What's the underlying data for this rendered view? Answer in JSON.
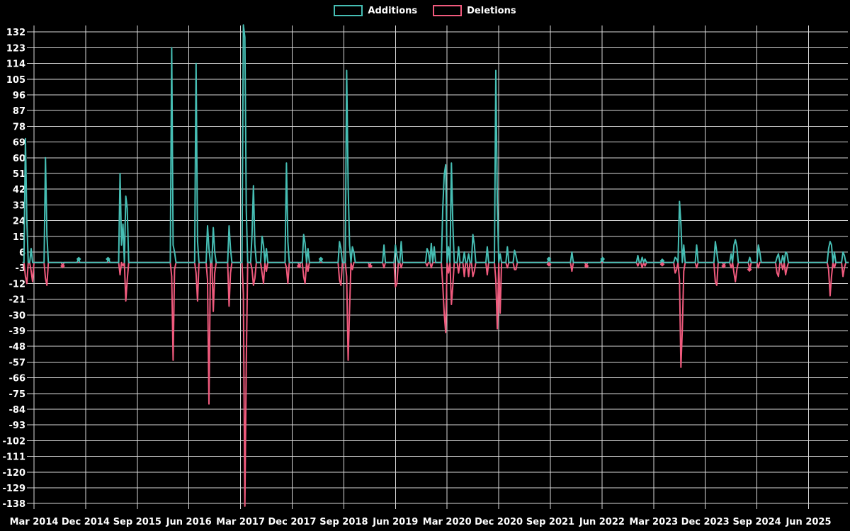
{
  "colors": {
    "background": "#000000",
    "grid": "#d9d9d9",
    "text": "#ffffff",
    "additions": "#46beb4",
    "deletions": "#f05a7d"
  },
  "legend": {
    "items": [
      {
        "label": "Additions",
        "color": "#46beb4"
      },
      {
        "label": "Deletions",
        "color": "#f05a7d"
      }
    ]
  },
  "chart_data": {
    "type": "line",
    "title": "",
    "xlabel": "",
    "ylabel": "",
    "grid": true,
    "legend_position": "top-center",
    "x_unit": "months since Mar 2014 tick (0 = Mar 2014, 9 = Dec 2014, ...)",
    "x_range": [
      -2.0,
      142.0
    ],
    "sample_step_months": 0.25,
    "x_axis": {
      "tick_labels": [
        "Mar 2014",
        "Dec 2014",
        "Sep 2015",
        "Jun 2016",
        "Mar 2017",
        "Dec 2017",
        "Sep 2018",
        "Jun 2019",
        "Mar 2020",
        "Dec 2020",
        "Sep 2021",
        "Jun 2022",
        "Mar 2023",
        "Dec 2023",
        "Sep 2024",
        "Jun 2025"
      ],
      "tick_month_offsets": [
        0,
        9,
        18,
        27,
        36,
        45,
        54,
        63,
        72,
        81,
        90,
        99,
        108,
        117,
        126,
        135
      ]
    },
    "y_axis": {
      "max": 132,
      "min": -138,
      "step": 9,
      "tick_labels": [
        "132",
        "123",
        "114",
        "105",
        "96",
        "87",
        "78",
        "69",
        "60",
        "51",
        "42",
        "33",
        "24",
        "15",
        "6",
        "-3",
        "-12",
        "-21",
        "-30",
        "-39",
        "-48",
        "-57",
        "-66",
        "-75",
        "-84",
        "-93",
        "-102",
        "-111",
        "-120",
        "-129",
        "-138"
      ]
    },
    "series": [
      {
        "name": "Additions",
        "color": "#46beb4",
        "points": [
          [
            -1.4,
            71
          ],
          [
            -1.15,
            24
          ],
          [
            -0.6,
            8
          ],
          [
            1.9,
            60
          ],
          [
            2.15,
            16
          ],
          [
            7.8,
            2
          ],
          [
            12.9,
            2
          ],
          [
            15.1,
            51
          ],
          [
            15.35,
            10
          ],
          [
            15.6,
            22
          ],
          [
            16.0,
            38
          ],
          [
            16.25,
            31
          ],
          [
            23.9,
            123
          ],
          [
            24.15,
            10
          ],
          [
            24.6,
            6
          ],
          [
            28.2,
            114
          ],
          [
            28.45,
            12
          ],
          [
            30.3,
            21
          ],
          [
            30.55,
            8
          ],
          [
            31.3,
            20
          ],
          [
            31.55,
            6
          ],
          [
            33.9,
            21
          ],
          [
            34.15,
            8
          ],
          [
            36.5,
            136
          ],
          [
            36.75,
            129
          ],
          [
            37.0,
            30
          ],
          [
            38.1,
            16
          ],
          [
            38.35,
            44
          ],
          [
            38.6,
            10
          ],
          [
            39.8,
            15
          ],
          [
            40.05,
            10
          ],
          [
            40.5,
            8
          ],
          [
            44.1,
            57
          ],
          [
            44.35,
            12
          ],
          [
            47.0,
            16
          ],
          [
            47.35,
            11
          ],
          [
            47.7,
            8
          ],
          [
            50.0,
            2
          ],
          [
            53.3,
            12
          ],
          [
            53.6,
            8
          ],
          [
            54.6,
            110
          ],
          [
            54.85,
            44
          ],
          [
            55.1,
            10
          ],
          [
            55.5,
            9
          ],
          [
            55.75,
            6
          ],
          [
            61.1,
            10
          ],
          [
            63.0,
            10
          ],
          [
            63.25,
            4
          ],
          [
            63.9,
            12
          ],
          [
            68.4,
            8
          ],
          [
            68.75,
            6
          ],
          [
            69.3,
            11
          ],
          [
            69.65,
            9
          ],
          [
            71.2,
            31
          ],
          [
            71.5,
            50
          ],
          [
            71.85,
            56
          ],
          [
            72.35,
            9
          ],
          [
            72.7,
            57
          ],
          [
            73.0,
            22
          ],
          [
            74.0,
            9
          ],
          [
            74.9,
            6
          ],
          [
            75.8,
            5
          ],
          [
            76.5,
            16
          ],
          [
            76.85,
            10
          ],
          [
            78.9,
            9
          ],
          [
            80.5,
            110
          ],
          [
            80.75,
            35
          ],
          [
            81.35,
            5
          ],
          [
            82.6,
            9
          ],
          [
            83.7,
            7
          ],
          [
            83.95,
            4
          ],
          [
            89.75,
            2
          ],
          [
            93.8,
            6
          ],
          [
            99.1,
            2
          ],
          [
            105.3,
            4
          ],
          [
            106.0,
            3
          ],
          [
            106.6,
            2
          ],
          [
            109.5,
            1
          ],
          [
            111.7,
            3
          ],
          [
            111.95,
            2
          ],
          [
            112.4,
            35
          ],
          [
            112.65,
            22
          ],
          [
            113.15,
            10
          ],
          [
            115.6,
            10
          ],
          [
            118.8,
            12
          ],
          [
            119.05,
            6
          ],
          [
            121.4,
            5
          ],
          [
            122.0,
            10
          ],
          [
            122.3,
            13
          ],
          [
            122.6,
            9
          ],
          [
            124.7,
            3
          ],
          [
            126.3,
            10
          ],
          [
            126.55,
            6
          ],
          [
            129.5,
            3
          ],
          [
            129.85,
            5
          ],
          [
            130.4,
            4
          ],
          [
            130.9,
            6
          ],
          [
            131.25,
            5
          ],
          [
            138.5,
            8
          ],
          [
            138.8,
            12
          ],
          [
            139.1,
            10
          ],
          [
            139.4,
            6
          ],
          [
            141.0,
            6
          ],
          [
            141.3,
            4
          ]
        ]
      },
      {
        "name": "Deletions",
        "color": "#f05a7d",
        "points": [
          [
            -1.4,
            -8
          ],
          [
            -1.15,
            -12
          ],
          [
            -0.6,
            -5
          ],
          [
            -0.35,
            -11
          ],
          [
            1.9,
            -9
          ],
          [
            2.15,
            -13
          ],
          [
            5.0,
            -2
          ],
          [
            15.1,
            -7
          ],
          [
            15.6,
            -2
          ],
          [
            16.0,
            -22
          ],
          [
            16.25,
            -10
          ],
          [
            23.9,
            -8
          ],
          [
            24.15,
            -56
          ],
          [
            24.6,
            -4
          ],
          [
            28.2,
            -6
          ],
          [
            28.45,
            -22
          ],
          [
            30.3,
            -10
          ],
          [
            30.55,
            -81
          ],
          [
            31.3,
            -28
          ],
          [
            31.55,
            -6
          ],
          [
            33.9,
            -25
          ],
          [
            34.15,
            -6
          ],
          [
            36.5,
            -18
          ],
          [
            36.75,
            -139.5
          ],
          [
            37.0,
            -57
          ],
          [
            38.1,
            -4
          ],
          [
            38.35,
            -13
          ],
          [
            38.6,
            -9
          ],
          [
            39.8,
            -6
          ],
          [
            40.05,
            -12
          ],
          [
            40.5,
            -5
          ],
          [
            44.1,
            -3
          ],
          [
            44.35,
            -12
          ],
          [
            46.2,
            -2
          ],
          [
            47.0,
            -8
          ],
          [
            47.35,
            -12
          ],
          [
            47.7,
            -5
          ],
          [
            53.3,
            -10
          ],
          [
            53.6,
            -13
          ],
          [
            54.6,
            -8
          ],
          [
            54.85,
            -56
          ],
          [
            55.1,
            -27
          ],
          [
            55.5,
            -4
          ],
          [
            58.6,
            -2
          ],
          [
            61.1,
            -3
          ],
          [
            63.0,
            -14
          ],
          [
            63.25,
            -12
          ],
          [
            63.9,
            -3
          ],
          [
            68.4,
            -2
          ],
          [
            69.3,
            -3
          ],
          [
            71.2,
            -13
          ],
          [
            71.5,
            -29
          ],
          [
            71.85,
            -40
          ],
          [
            72.35,
            -6
          ],
          [
            72.7,
            -24
          ],
          [
            73.0,
            -13
          ],
          [
            74.0,
            -6
          ],
          [
            74.9,
            -8
          ],
          [
            75.8,
            -8
          ],
          [
            76.5,
            -8
          ],
          [
            76.85,
            -5
          ],
          [
            78.9,
            -7
          ],
          [
            80.5,
            -10
          ],
          [
            80.75,
            -38
          ],
          [
            81.35,
            -29
          ],
          [
            82.6,
            -3
          ],
          [
            83.7,
            -4
          ],
          [
            83.95,
            -4
          ],
          [
            89.75,
            -1
          ],
          [
            93.8,
            -5
          ],
          [
            96.3,
            -2
          ],
          [
            105.3,
            -2
          ],
          [
            106.0,
            -3
          ],
          [
            106.6,
            -2
          ],
          [
            109.5,
            -1
          ],
          [
            111.7,
            -6
          ],
          [
            111.95,
            -4
          ],
          [
            112.4,
            -10
          ],
          [
            112.65,
            -60
          ],
          [
            112.9,
            -38
          ],
          [
            113.15,
            -5
          ],
          [
            115.6,
            -3
          ],
          [
            118.8,
            -11
          ],
          [
            119.05,
            -13
          ],
          [
            120.2,
            -2
          ],
          [
            121.4,
            -3
          ],
          [
            122.0,
            -6
          ],
          [
            122.3,
            -11
          ],
          [
            122.6,
            -4
          ],
          [
            124.7,
            -4
          ],
          [
            126.3,
            -3
          ],
          [
            129.5,
            -6
          ],
          [
            129.85,
            -8
          ],
          [
            130.4,
            -4
          ],
          [
            130.9,
            -7
          ],
          [
            131.25,
            -3
          ],
          [
            138.5,
            -4
          ],
          [
            138.8,
            -19
          ],
          [
            139.1,
            -8
          ],
          [
            139.4,
            -3
          ],
          [
            141.0,
            -8
          ],
          [
            141.3,
            -3
          ]
        ]
      }
    ],
    "markers": [
      {
        "series": 1,
        "m": 5.0,
        "v": -2
      },
      {
        "series": 0,
        "m": 7.8,
        "v": 2
      },
      {
        "series": 0,
        "m": 12.9,
        "v": 2
      },
      {
        "series": 1,
        "m": 46.2,
        "v": -2
      },
      {
        "series": 0,
        "m": 50.0,
        "v": 2
      },
      {
        "series": 1,
        "m": 58.6,
        "v": -2
      },
      {
        "series": 0,
        "m": 89.75,
        "v": 2
      },
      {
        "series": 1,
        "m": 89.75,
        "v": -1
      },
      {
        "series": 1,
        "m": 96.3,
        "v": -2
      },
      {
        "series": 0,
        "m": 99.1,
        "v": 2
      },
      {
        "series": 0,
        "m": 109.5,
        "v": 1
      },
      {
        "series": 1,
        "m": 109.5,
        "v": -1
      },
      {
        "series": 1,
        "m": 120.2,
        "v": -2
      },
      {
        "series": 1,
        "m": 124.7,
        "v": -4
      }
    ]
  }
}
